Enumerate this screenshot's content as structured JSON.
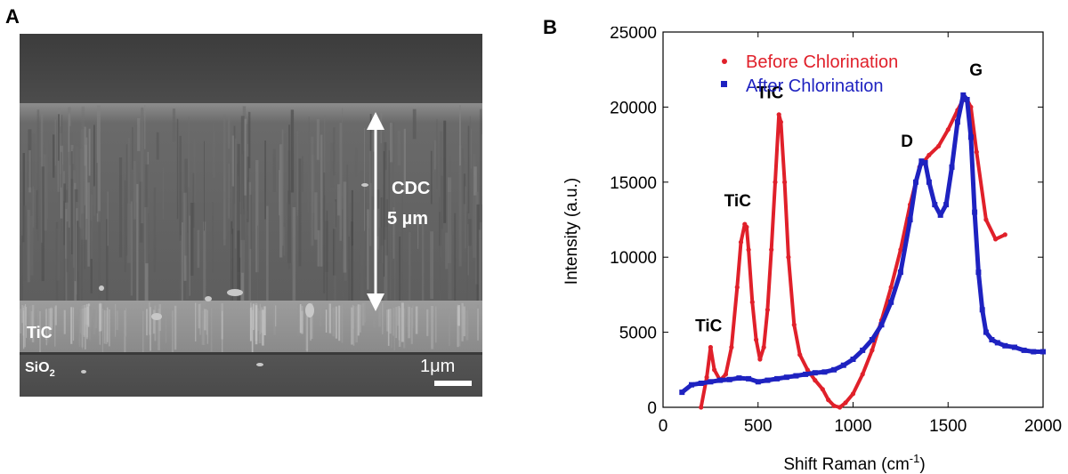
{
  "panel_a": {
    "letter": "A",
    "labels": {
      "cdc_line1": "CDC",
      "cdc_line2": "5 µm",
      "tic": "TiC",
      "sio2_base": "SiO",
      "sio2_sub": "2",
      "scale_bar": "1μm"
    }
  },
  "panel_b": {
    "letter": "B"
  },
  "chart_data": {
    "type": "scatter",
    "title": "",
    "xlabel": "Shift Raman (cm",
    "xlabel_sup": "-1",
    "xlabel_tail": ")",
    "ylabel": "Intensity (a.u.)",
    "xlim": [
      0,
      2000
    ],
    "ylim": [
      0,
      25000
    ],
    "xticks": [
      "0",
      "500",
      "1000",
      "1500",
      "2000"
    ],
    "yticks": [
      "0",
      "5000",
      "10000",
      "15000",
      "20000",
      "25000"
    ],
    "legend_position": "top-left",
    "colors": {
      "before": "#e0202a",
      "after": "#1e22c0"
    },
    "series": [
      {
        "name": "Before Chlorination",
        "x": [
          200,
          230,
          250,
          270,
          300,
          330,
          360,
          390,
          410,
          430,
          440,
          450,
          470,
          490,
          510,
          530,
          550,
          570,
          590,
          610,
          620,
          640,
          660,
          690,
          720,
          760,
          800,
          840,
          870,
          900,
          930,
          960,
          1000,
          1050,
          1100,
          1150,
          1200,
          1250,
          1300,
          1350,
          1400,
          1450,
          1500,
          1550,
          1580,
          1600,
          1620,
          1650,
          1700,
          1750,
          1800
        ],
        "y": [
          0,
          2000,
          4000,
          2500,
          1800,
          2200,
          4000,
          8000,
          11000,
          12200,
          12000,
          10500,
          7000,
          4500,
          3200,
          4000,
          6500,
          10500,
          15000,
          19500,
          19000,
          15000,
          10000,
          5500,
          3500,
          2500,
          1800,
          1200,
          500,
          100,
          0,
          300,
          900,
          2200,
          3800,
          5800,
          8000,
          10500,
          13500,
          16000,
          16800,
          17400,
          18500,
          19800,
          20500,
          20500,
          20000,
          17000,
          12500,
          11200,
          11500
        ]
      },
      {
        "name": "After Chlorination",
        "x": [
          100,
          150,
          200,
          250,
          300,
          350,
          400,
          450,
          500,
          550,
          600,
          650,
          700,
          750,
          800,
          850,
          900,
          950,
          1000,
          1050,
          1100,
          1150,
          1200,
          1250,
          1300,
          1330,
          1360,
          1380,
          1400,
          1430,
          1460,
          1490,
          1520,
          1550,
          1580,
          1600,
          1620,
          1640,
          1660,
          1680,
          1700,
          1730,
          1760,
          1800,
          1850,
          1900,
          1950,
          2000
        ],
        "y": [
          1000,
          1500,
          1600,
          1700,
          1800,
          1850,
          1950,
          1900,
          1700,
          1800,
          1900,
          2000,
          2100,
          2200,
          2300,
          2350,
          2500,
          2800,
          3200,
          3800,
          4500,
          5500,
          7000,
          9000,
          12500,
          15000,
          16400,
          16300,
          15000,
          13500,
          12800,
          13500,
          16000,
          19000,
          20800,
          20500,
          18000,
          13000,
          9000,
          6500,
          5000,
          4500,
          4300,
          4100,
          4000,
          3800,
          3700,
          3700
        ]
      }
    ],
    "annotations": [
      {
        "text": "TiC",
        "x": 240,
        "y": 4000
      },
      {
        "text": "TiC",
        "x": 430,
        "y": 12200
      },
      {
        "text": "TiC",
        "x": 610,
        "y": 19400
      },
      {
        "text": "D",
        "x": 1340,
        "y": 16400
      },
      {
        "text": "G",
        "x": 1600,
        "y": 20800
      }
    ]
  }
}
